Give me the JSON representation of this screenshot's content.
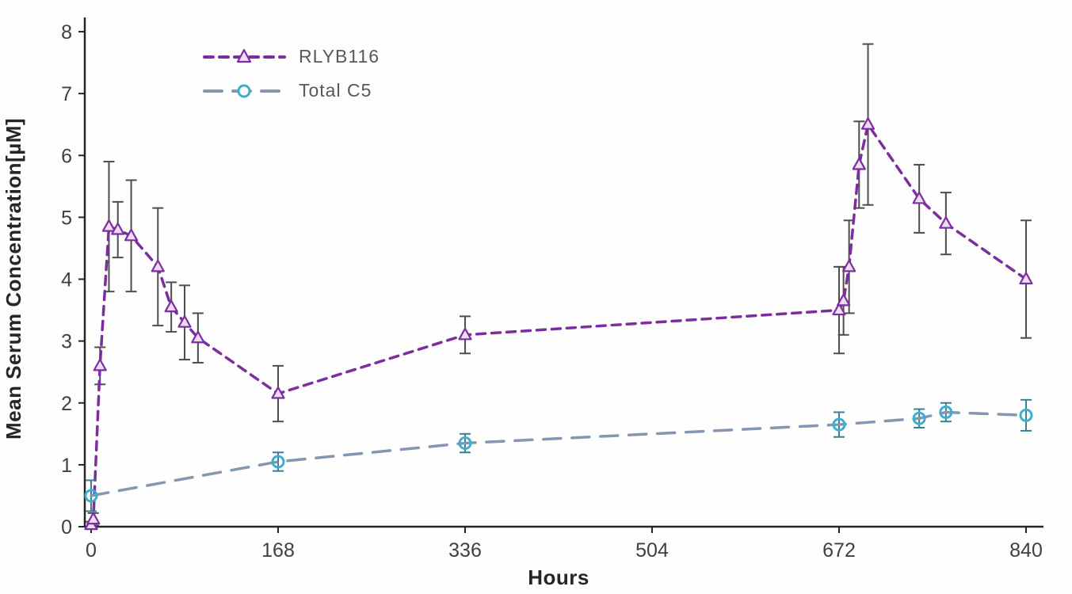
{
  "chart_data": {
    "type": "line",
    "title": "",
    "xlabel": "Hours",
    "ylabel": "Mean Serum Concentration[µM]",
    "xlim": [
      0,
      840
    ],
    "ylim": [
      0,
      8
    ],
    "x_ticks": [
      0,
      168,
      336,
      504,
      672,
      840
    ],
    "y_ticks": [
      0,
      1,
      2,
      3,
      4,
      5,
      6,
      7,
      8
    ],
    "grid": false,
    "legend_position": "top-left",
    "series": [
      {
        "name": "RLYB116",
        "marker": "triangle",
        "color": "#7D2E9E",
        "marker_fill": "#EBDDF2",
        "error_color": "#4D4D4D",
        "dash": "11 8",
        "points": [
          [
            0,
            0.03,
            0.05
          ],
          [
            2,
            0.12,
            0.1
          ],
          [
            8,
            2.6,
            0.3
          ],
          [
            16,
            4.85,
            1.05
          ],
          [
            24,
            4.8,
            0.45
          ],
          [
            36,
            4.7,
            0.9
          ],
          [
            60,
            4.2,
            0.95
          ],
          [
            72,
            3.55,
            0.4
          ],
          [
            84,
            3.3,
            0.6
          ],
          [
            96,
            3.05,
            0.4
          ],
          [
            168,
            2.15,
            0.45
          ],
          [
            336,
            3.1,
            0.3
          ],
          [
            672,
            3.5,
            0.7
          ],
          [
            676,
            3.65,
            0.55
          ],
          [
            681,
            4.2,
            0.75
          ],
          [
            690,
            5.85,
            0.7
          ],
          [
            698,
            6.5,
            1.3
          ],
          [
            744,
            5.3,
            0.55
          ],
          [
            768,
            4.9,
            0.5
          ],
          [
            840,
            4.0,
            0.95
          ]
        ]
      },
      {
        "name": "Total C5",
        "marker": "circle",
        "color": "#8496B0",
        "marker_color": "#3FAECD",
        "error_color": "#3E7D93",
        "dash": "22 14",
        "points": [
          [
            0,
            0.5,
            0.25
          ],
          [
            168,
            1.05,
            0.15
          ],
          [
            336,
            1.35,
            0.15
          ],
          [
            672,
            1.65,
            0.2
          ],
          [
            744,
            1.75,
            0.15
          ],
          [
            768,
            1.85,
            0.15
          ],
          [
            840,
            1.8,
            0.25
          ]
        ]
      }
    ]
  }
}
